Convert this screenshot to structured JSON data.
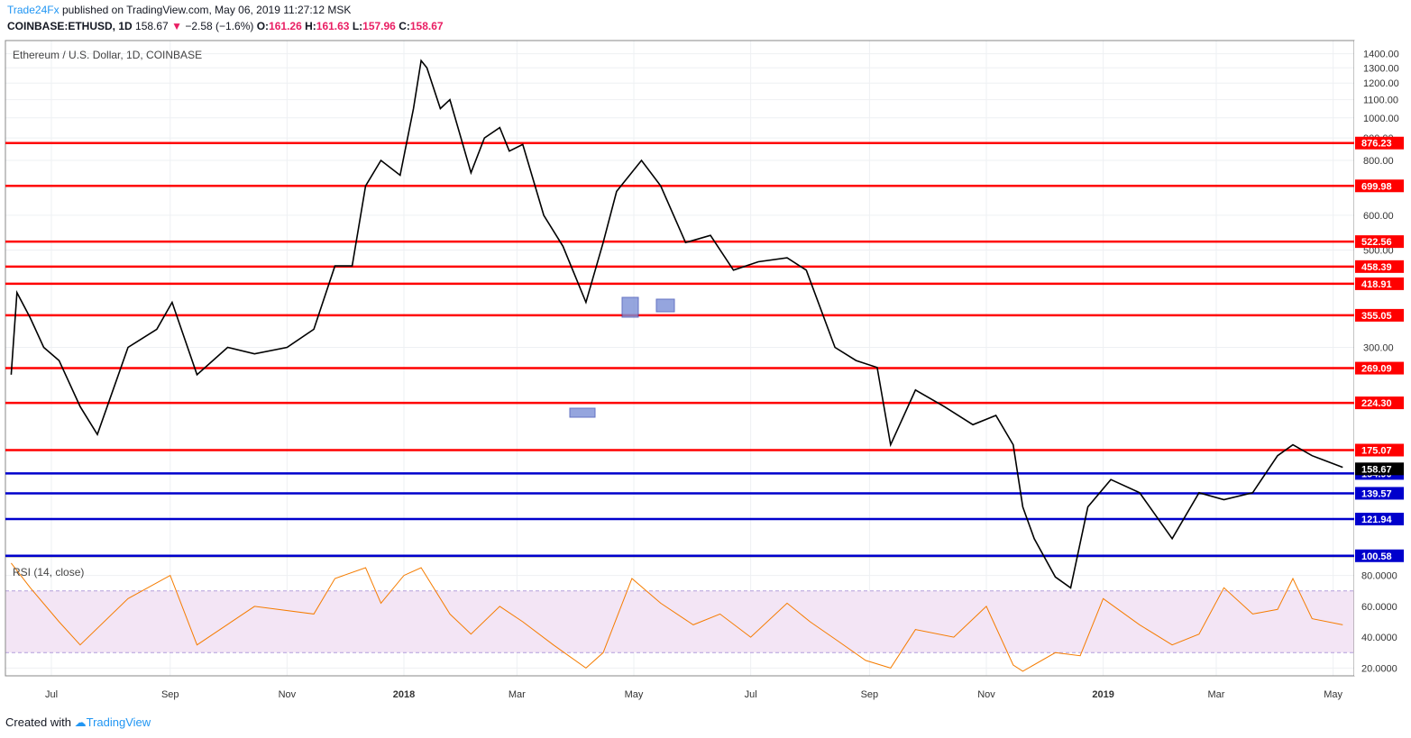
{
  "header": {
    "publisher": "Trade24Fx",
    "published_text": "published on TradingView.com, May 06, 2019 11:27:12 MSK",
    "symbol": "COINBASE:ETHUSD, 1D",
    "last": "158.67",
    "change": "−2.58 (−1.6%)",
    "o_label": "O:",
    "o": "161.26",
    "h_label": "H:",
    "h": "161.63",
    "l_label": "L:",
    "l": "157.96",
    "c_label": "C:",
    "c": "158.67"
  },
  "footer": {
    "created_with": "Created with",
    "brand": "TradingView"
  },
  "colors": {
    "candle": "#000000",
    "level_red": "#ff0000",
    "level_blue": "#0000cc",
    "rsi_line": "#f57c00",
    "rsi_band": "#f3e5f5",
    "grid": "#eef0f3"
  },
  "chart_data": [
    {
      "type": "line",
      "title": "Ethereum / U.S. Dollar, 1D, COINBASE",
      "y_scale": "log",
      "x_ticks": [
        "Jul",
        "Sep",
        "Nov",
        "2018",
        "Mar",
        "May",
        "Jul",
        "Sep",
        "Nov",
        "2019",
        "Mar",
        "May"
      ],
      "y_ticks": [
        "1400.00",
        "1300.00",
        "1200.00",
        "1100.00",
        "1000.00",
        "900.00",
        "800.00",
        "700.00",
        "600.00",
        "500.00",
        "300.00"
      ],
      "ylim": [
        100,
        1500
      ],
      "red_levels": [
        876.23,
        699.98,
        522.56,
        458.39,
        418.91,
        355.05,
        269.09,
        224.3,
        175.07
      ],
      "blue_levels": [
        154.9,
        139.57,
        121.94,
        100.58
      ],
      "last_price": 158.67,
      "series": [
        {
          "x": [
            "2017-06-10",
            "2017-06-13",
            "2017-06-20",
            "2017-06-27",
            "2017-07-05",
            "2017-07-16",
            "2017-07-25",
            "2017-08-10",
            "2017-08-25",
            "2017-09-02",
            "2017-09-15",
            "2017-10-01",
            "2017-10-15",
            "2017-11-01",
            "2017-11-15",
            "2017-11-26",
            "2017-12-05",
            "2017-12-12",
            "2017-12-20",
            "2017-12-30",
            "2018-01-06",
            "2018-01-10",
            "2018-01-13",
            "2018-01-20",
            "2018-01-25",
            "2018-02-05",
            "2018-02-12",
            "2018-02-20",
            "2018-02-25",
            "2018-03-04",
            "2018-03-15",
            "2018-03-25",
            "2018-04-06",
            "2018-04-15",
            "2018-04-22",
            "2018-05-05",
            "2018-05-15",
            "2018-05-28",
            "2018-06-10",
            "2018-06-22",
            "2018-07-05",
            "2018-07-20",
            "2018-07-30",
            "2018-08-14",
            "2018-08-25",
            "2018-09-05",
            "2018-09-12",
            "2018-09-25",
            "2018-10-10",
            "2018-10-25",
            "2018-11-06",
            "2018-11-15",
            "2018-11-20",
            "2018-11-26",
            "2018-12-07",
            "2018-12-15",
            "2018-12-24",
            "2019-01-05",
            "2019-01-20",
            "2019-02-06",
            "2019-02-20",
            "2019-03-05",
            "2019-03-20",
            "2019-04-02",
            "2019-04-10",
            "2019-04-20",
            "2019-05-06"
          ],
          "values": [
            260,
            400,
            350,
            300,
            280,
            220,
            190,
            300,
            330,
            380,
            260,
            300,
            290,
            300,
            330,
            460,
            460,
            700,
            800,
            740,
            1050,
            1350,
            1300,
            1050,
            1100,
            750,
            900,
            950,
            840,
            870,
            600,
            510,
            380,
            520,
            680,
            800,
            700,
            520,
            540,
            450,
            470,
            480,
            450,
            300,
            280,
            270,
            180,
            240,
            220,
            200,
            210,
            180,
            130,
            110,
            90,
            85,
            130,
            150,
            140,
            110,
            140,
            135,
            140,
            170,
            180,
            170,
            160
          ]
        }
      ]
    },
    {
      "type": "line",
      "title": "RSI (14, close)",
      "y_ticks": [
        "80.0000",
        "60.0000",
        "40.0000",
        "20.0000"
      ],
      "ylim": [
        15,
        92
      ],
      "bands": [
        30,
        70
      ],
      "series": [
        {
          "x": [
            "2017-06-10",
            "2017-06-20",
            "2017-07-05",
            "2017-07-16",
            "2017-08-10",
            "2017-09-01",
            "2017-09-15",
            "2017-10-15",
            "2017-11-15",
            "2017-11-26",
            "2017-12-12",
            "2017-12-20",
            "2018-01-01",
            "2018-01-10",
            "2018-01-25",
            "2018-02-05",
            "2018-02-20",
            "2018-03-04",
            "2018-03-20",
            "2018-04-06",
            "2018-04-15",
            "2018-04-30",
            "2018-05-15",
            "2018-06-01",
            "2018-06-15",
            "2018-07-01",
            "2018-07-20",
            "2018-08-01",
            "2018-08-15",
            "2018-08-30",
            "2018-09-12",
            "2018-09-25",
            "2018-10-15",
            "2018-11-01",
            "2018-11-15",
            "2018-11-20",
            "2018-12-07",
            "2018-12-20",
            "2019-01-01",
            "2019-01-20",
            "2019-02-06",
            "2019-02-20",
            "2019-03-05",
            "2019-03-20",
            "2019-04-02",
            "2019-04-10",
            "2019-04-20",
            "2019-05-06"
          ],
          "values": [
            88,
            72,
            50,
            35,
            65,
            80,
            35,
            60,
            55,
            78,
            85,
            62,
            80,
            85,
            55,
            42,
            60,
            50,
            35,
            20,
            30,
            78,
            62,
            48,
            55,
            40,
            62,
            50,
            38,
            25,
            20,
            45,
            40,
            60,
            22,
            18,
            30,
            28,
            65,
            48,
            35,
            42,
            72,
            55,
            58,
            78,
            52,
            48
          ]
        }
      ]
    }
  ]
}
